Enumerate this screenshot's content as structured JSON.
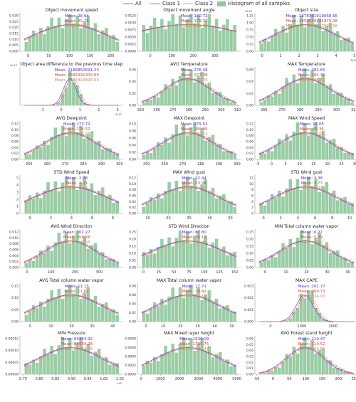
{
  "legend": {
    "all": "All",
    "class1": "Class 1",
    "class2": "Class 2",
    "hist": "Histogram of all samples"
  },
  "colors": {
    "all": "#7b52e0",
    "class1": "#e34a4a",
    "class2": "#d9a07a",
    "hist": "#8fc79b",
    "mean_all": "#5b2bd9",
    "mean_c1": "#e23a3a",
    "mean_c2": "#c98c6a"
  },
  "chart_data": [
    {
      "type": "bar",
      "title": "Object movement speed",
      "xticks": [
        "0",
        "50",
        "100",
        "150",
        "200"
      ],
      "xlim": [
        -20,
        230
      ],
      "yticks": [
        "0.000",
        "0.005",
        "0.010",
        "0.015",
        "0.020",
        "0.025",
        "0.030"
      ],
      "means": [
        "Mean: 28.64",
        "Mean: 25.76",
        "Mean: 33.53"
      ],
      "peak": 0.3,
      "width": 0.35
    },
    {
      "type": "bar",
      "title": "Object movement angle",
      "xticks": [
        "0",
        "100",
        "200",
        "300"
      ],
      "xlim": [
        -60,
        420
      ],
      "yticks": [
        "0.0000",
        "0.0025",
        "0.0050",
        "0.0075",
        "0.0100",
        "0.0125"
      ],
      "means": [
        "Mean: 180.72",
        "Mean: 179.73",
        "Mean: 181.70"
      ],
      "peak": 0.55,
      "width": 0.6
    },
    {
      "type": "bar",
      "title": "Object size",
      "scale": "1e-12",
      "xticks": [
        "0",
        "1",
        "2",
        "3",
        "4",
        "5"
      ],
      "xlim": [
        -0.4,
        5.2
      ],
      "xscale": "1e12",
      "yticks": [
        "0.00",
        "0.25",
        "0.50",
        "0.75",
        "1.00",
        "1.25"
      ],
      "means": [
        "Mean: 1678391919068.66",
        "Mean: 1950548831970.08",
        "Mean: 1645507767997.58"
      ],
      "peak": 0.25,
      "width": 0.3
    },
    {
      "type": "bar",
      "title": "Object area difference to the previous time step",
      "scale": "1e-12",
      "xticks": [
        "-1",
        "0",
        "1",
        "2",
        "3"
      ],
      "xlim": [
        -2.2,
        3.3
      ],
      "xscale": "1e12",
      "yticks": [],
      "means": [
        "Mean: 2186850691.23",
        "Mean: 2584391300.69",
        "Mean: 2543403898.99"
      ],
      "peak": 0.4,
      "width": 0.06
    },
    {
      "type": "bar",
      "title": "AVG Temperature",
      "xticks": [
        "250",
        "260",
        "270",
        "280",
        "290",
        "300",
        "310"
      ],
      "xlim": [
        248,
        312
      ],
      "yticks": [
        "0.00",
        "0.02",
        "0.04",
        "0.06"
      ],
      "means": [
        "Mean: 276.48",
        "Mean: 277.38",
        "Mean: 279.76"
      ],
      "peak": 0.42,
      "width": 0.22
    },
    {
      "type": "bar",
      "title": "MAX Temperature",
      "xticks": [
        "260",
        "270",
        "280",
        "290",
        "300",
        "310"
      ],
      "xlim": [
        255,
        312
      ],
      "yticks": [
        "0.00",
        "0.02",
        "0.04",
        "0.06"
      ],
      "means": [
        "Mean: 282.65",
        "Mean: 284.35",
        "Mean: 286.63"
      ],
      "peak": 0.48,
      "width": 0.24
    },
    {
      "type": "bar",
      "title": "AVG Dewpoint",
      "xticks": [
        "250",
        "260",
        "270",
        "280",
        "290",
        "300"
      ],
      "xlim": [
        245,
        302
      ],
      "yticks": [
        "0.00",
        "0.02",
        "0.04",
        "0.06",
        "0.08",
        "0.10",
        "0.12"
      ],
      "means": [
        "Mean: 273.72",
        "Mean: 274.52",
        "Mean: 276.05"
      ],
      "peak": 0.5,
      "width": 0.25
    },
    {
      "type": "bar",
      "title": "MAX Dewpoint",
      "xticks": [
        "250",
        "260",
        "270",
        "280",
        "290",
        "300"
      ],
      "xlim": [
        245,
        302
      ],
      "yticks": [
        "0.00",
        "0.02",
        "0.04",
        "0.06",
        "0.08",
        "0.10"
      ],
      "means": [
        "Mean: 279.53",
        "Mean: 280.90",
        "Mean: 282.13"
      ],
      "peak": 0.6,
      "width": 0.25
    },
    {
      "type": "bar",
      "title": "MAX Wind Speed",
      "xticks": [
        "-5",
        "0",
        "5",
        "10",
        "15",
        "20",
        "25",
        "30"
      ],
      "xlim": [
        -6,
        31
      ],
      "yticks": [
        "0.00",
        "0.02",
        "0.04",
        "0.06",
        "0.08",
        "0.10",
        "0.12"
      ],
      "means": [
        "Mean: 15.05",
        "Mean: 16.36",
        "Mean: 16.60"
      ],
      "peak": 0.55,
      "width": 0.25
    },
    {
      "type": "bar",
      "title": "STD Wind Speed",
      "xticks": [
        "0",
        "2",
        "4",
        "6",
        "8"
      ],
      "xlim": [
        -1,
        9
      ],
      "yticks": [
        "0",
        "1",
        "2",
        "3",
        "4",
        "5"
      ],
      "means": [
        "Mean: 2.78",
        "Mean: 3.11",
        "Mean: 2.94"
      ],
      "peak": 0.35,
      "width": 0.35
    },
    {
      "type": "bar",
      "title": "MAX Wind gust",
      "xticks": [
        "10",
        "20",
        "30",
        "40",
        "50"
      ],
      "xlim": [
        5,
        55
      ],
      "yticks": [
        "0.00",
        "0.02",
        "0.04",
        "0.06",
        "0.08",
        "0.10",
        "0.12"
      ],
      "means": [
        "Mean: 22.44",
        "Mean: 23.94",
        "Mean: 24.59"
      ],
      "peak": 0.4,
      "width": 0.3
    },
    {
      "type": "bar",
      "title": "STD Wind gust",
      "xticks": [
        "0",
        "2",
        "4",
        "6",
        "8",
        "10"
      ],
      "xlim": [
        -1,
        11
      ],
      "yticks": [
        "0",
        "2",
        "4",
        "6",
        "8",
        "10",
        "12"
      ],
      "means": [
        "Mean: 3.38",
        "Mean: 3.77",
        "Mean: 3.33"
      ],
      "peak": 0.45,
      "width": 0.3
    },
    {
      "type": "bar",
      "title": "AVG Wind Direction",
      "xticks": [
        "0",
        "100",
        "200",
        "300"
      ],
      "xlim": [
        -30,
        400
      ],
      "yticks": [
        "0.000",
        "0.002",
        "0.004",
        "0.006",
        "0.008",
        "0.010",
        "0.012"
      ],
      "means": [
        "Mean: 202.27",
        "Mean: 204.28",
        "Mean: 213.58"
      ],
      "peak": 0.45,
      "width": 0.25
    },
    {
      "type": "bar",
      "title": "STD Wind Direction",
      "xticks": [
        "0",
        "25",
        "50",
        "75",
        "100",
        "125",
        "150"
      ],
      "xlim": [
        -10,
        160
      ],
      "yticks": [
        "0.00",
        "0.05",
        "0.10",
        "0.15",
        "0.20",
        "0.25"
      ],
      "means": [
        "Mean: 67.80",
        "Mean: 74.12",
        "Mean: 66.38"
      ],
      "peak": 0.3,
      "width": 0.35
    },
    {
      "type": "bar",
      "title": "MIN Total column water vapor",
      "xticks": [
        "0",
        "10",
        "20",
        "30",
        "40"
      ],
      "xlim": [
        -5,
        45
      ],
      "yticks": [
        "0.00",
        "0.05",
        "0.10",
        "0.15",
        "0.20",
        "0.25"
      ],
      "means": [
        "Mean: 6.27",
        "Mean: 5.39",
        "Mean: 6.82"
      ],
      "peak": 0.35,
      "width": 0.25
    },
    {
      "type": "bar",
      "title": "AVG Total column water vapor",
      "xticks": [
        "0",
        "10",
        "20",
        "30",
        "40"
      ],
      "xlim": [
        -5,
        45
      ],
      "yticks": [
        "0.00",
        "0.05",
        "0.10",
        "0.15"
      ],
      "means": [
        "Mean: 11.15",
        "Mean: 11.62",
        "Mean: 12.88"
      ],
      "peak": 0.35,
      "width": 0.3
    },
    {
      "type": "bar",
      "title": "MAX Total column water vapor",
      "xticks": [
        "0",
        "10",
        "20",
        "30",
        "40",
        "50"
      ],
      "xlim": [
        -5,
        55
      ],
      "yticks": [
        "0.00",
        "0.02",
        "0.04",
        "0.06",
        "0.08"
      ],
      "means": [
        "Mean: 17.71",
        "Mean: 19.42",
        "Mean: 21.60"
      ],
      "peak": 0.55,
      "width": 0.3
    },
    {
      "type": "bar",
      "title": "MAX CAPE",
      "xticks": [
        "0",
        "1000",
        "2000"
      ],
      "xlim": [
        -500,
        2800
      ],
      "yticks": [
        "0.000",
        "0.001",
        "0.002",
        "0.003"
      ],
      "means": [
        "Mean: 202.77",
        "Mean: 260.73",
        "Mean: 324.00"
      ],
      "peak": 0.22,
      "width": 0.08
    },
    {
      "type": "bar",
      "title": "MIN Pressure",
      "xscale": "1e5",
      "xticks": [
        "0.75",
        "0.80",
        "0.85",
        "0.90",
        "0.95",
        "1.00",
        "1.05"
      ],
      "xlim": [
        0.74,
        1.06
      ],
      "yticks": [
        "0.00000",
        "0.00005",
        "0.00010",
        "0.00015"
      ],
      "means": [
        "Mean: 89344.92",
        "Mean: 88093.28",
        "Mean: 89463.48"
      ],
      "peak": 0.4,
      "width": 0.3
    },
    {
      "type": "bar",
      "title": "MAX Mixed layer height",
      "xticks": [
        "0",
        "1000",
        "2000",
        "3000",
        "4000",
        "5000"
      ],
      "xlim": [
        -200,
        5200
      ],
      "yticks": [
        "0.0000",
        "0.0002",
        "0.0004",
        "0.0006",
        "0.0008"
      ],
      "means": [
        "Mean: 1639.09",
        "Mean: 1786.75",
        "Mean: 1972.42"
      ],
      "peak": 0.5,
      "width": 0.3
    },
    {
      "type": "bar",
      "title": "AVG Forest stand height",
      "xticks": [
        "-50",
        "0",
        "50",
        "100",
        "150",
        "200",
        "250"
      ],
      "xlim": [
        -55,
        260
      ],
      "yticks": [
        "0.00",
        "0.01",
        "0.02",
        "0.03",
        "0.04",
        "0.05",
        "0.06"
      ],
      "means": [
        "Mean: 110.47",
        "Mean: 110.52",
        "Mean: 109.85"
      ],
      "peak": 0.3,
      "width": 0.18
    }
  ]
}
